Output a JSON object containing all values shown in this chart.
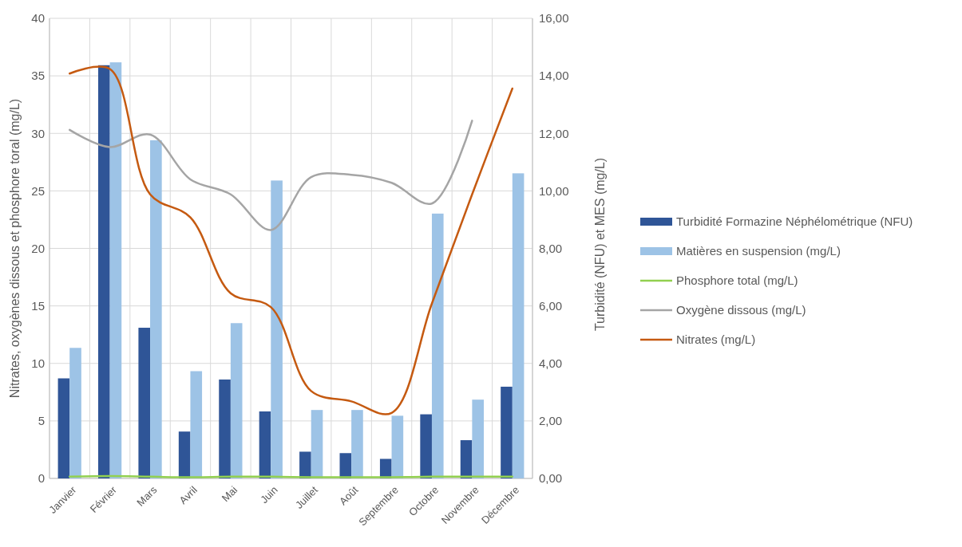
{
  "chart_data": {
    "type": "bar",
    "categories": [
      "Janvier",
      "Février",
      "Mars",
      "Avril",
      "Mai",
      "Juin",
      "Juillet",
      "Août",
      "Septembre",
      "Octobre",
      "Novembre",
      "Décembre"
    ],
    "ylabel": "Nitrates, oxygènes dissous et phosphore toral (mg/L)",
    "y2label": "Turbidité (NFU) et MES (mg/L)",
    "ylim": [
      0,
      40
    ],
    "yticks": [
      0,
      5,
      10,
      15,
      20,
      25,
      30,
      35,
      40
    ],
    "y2lim": [
      0,
      16
    ],
    "y2ticks": [
      {
        "value": 0,
        "label": "0,00"
      },
      {
        "value": 2,
        "label": "2,00"
      },
      {
        "value": 4,
        "label": "4,00"
      },
      {
        "value": 6,
        "label": "6,00"
      },
      {
        "value": 8,
        "label": "8,00"
      },
      {
        "value": 10,
        "label": "10,00"
      },
      {
        "value": 12,
        "label": "12,00"
      },
      {
        "value": 14,
        "label": "14,00"
      },
      {
        "value": 16,
        "label": "16,00"
      }
    ],
    "grid": true,
    "legend": "right",
    "series": [
      {
        "name": "Turbidité Formazine Néphélométrique (NFU)",
        "axis": "y2",
        "color": "#2f5597",
        "values": [
          3.48,
          14.37,
          5.24,
          1.63,
          3.44,
          2.33,
          0.93,
          0.88,
          0.68,
          2.23,
          1.33,
          3.19
        ]
      },
      {
        "name": "Matières en suspension (mg/L)",
        "axis": "y2",
        "color": "#9dc3e6",
        "values": [
          4.54,
          14.47,
          11.76,
          3.73,
          5.4,
          10.36,
          2.38,
          2.38,
          2.18,
          9.21,
          2.74,
          10.61
        ]
      },
      {
        "name": "Phosphore total (mg/L)",
        "type": "line",
        "color": "#92d050",
        "values": [
          0.15,
          0.2,
          0.15,
          0.1,
          0.15,
          0.15,
          0.1,
          0.1,
          0.1,
          0.15,
          0.15,
          0.15
        ]
      },
      {
        "name": "Oxygène dissous (mg/L)",
        "type": "line",
        "color": "#a5a5a5",
        "values": [
          30.3,
          28.8,
          29.9,
          26.0,
          24.7,
          21.6,
          26.2,
          26.4,
          25.7,
          23.9,
          31.1,
          null
        ]
      },
      {
        "name": "Nitrates (mg/L)",
        "type": "line",
        "color": "#c55a11",
        "values": [
          35.2,
          35.6,
          24.7,
          22.7,
          16.1,
          14.9,
          7.6,
          6.7,
          5.7,
          15.2,
          24.7,
          33.9
        ]
      }
    ]
  }
}
